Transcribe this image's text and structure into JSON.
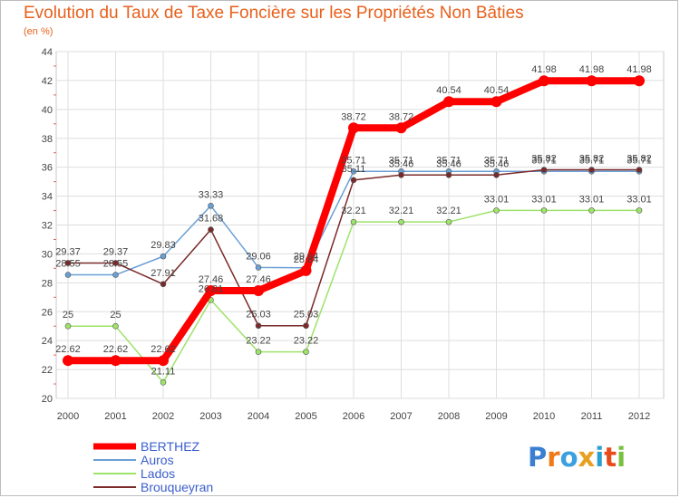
{
  "chart_data": {
    "type": "line",
    "title": "Evolution du Taux de Taxe Foncière sur les Propriétés Non Bâties",
    "ylabel": "(en %)",
    "xlabel": "",
    "ylim": [
      20,
      44
    ],
    "yticks": [
      "20",
      "22",
      "24",
      "26",
      "28",
      "30",
      "32",
      "34",
      "36",
      "38",
      "40",
      "42",
      "44"
    ],
    "categories": [
      "2000",
      "2001",
      "2002",
      "2003",
      "2004",
      "2005",
      "2006",
      "2007",
      "2008",
      "2009",
      "2010",
      "2011",
      "2012"
    ],
    "series": [
      {
        "name": "Auros",
        "color": "#6b9fd4",
        "values": [
          28.55,
          28.55,
          29.83,
          33.33,
          29.06,
          29.04,
          35.71,
          35.71,
          35.71,
          35.71,
          35.71,
          35.71,
          35.71
        ],
        "labels": [
          "28.55",
          "28.55",
          "29.83",
          "33.33",
          "29.06",
          "29.04",
          "35.71",
          "35.71",
          "35.71",
          "35.71",
          "35.71",
          "35.71",
          "35.71"
        ]
      },
      {
        "name": "Lados",
        "color": "#9ee36a",
        "values": [
          25,
          25,
          21.11,
          26.81,
          23.22,
          23.22,
          32.21,
          32.21,
          32.21,
          33.01,
          33.01,
          33.01,
          33.01
        ],
        "labels": [
          "25",
          "25",
          "21.11",
          "26.81",
          "23.22",
          "23.22",
          "32.21",
          "32.21",
          "32.21",
          "33.01",
          "33.01",
          "33.01",
          "33.01"
        ]
      },
      {
        "name": "Brouqueyran",
        "color": "#7a2a2a",
        "values": [
          29.37,
          29.37,
          27.91,
          31.68,
          25.03,
          25.03,
          35.11,
          35.46,
          35.46,
          35.46,
          35.82,
          35.82,
          35.82
        ],
        "labels": [
          "29.37",
          "29.37",
          "27.91",
          "31.68",
          "25.03",
          "25.03",
          "35.11",
          "35.46",
          "35.46",
          "35.46",
          "35.82",
          "35.82",
          "35.82"
        ]
      },
      {
        "name": "BERTHEZ",
        "color": "#ff0000",
        "values": [
          22.62,
          22.62,
          22.62,
          27.46,
          27.46,
          28.84,
          38.72,
          38.72,
          40.54,
          40.54,
          41.98,
          41.98,
          41.98
        ],
        "labels": [
          "22.62",
          "22.62",
          "22.62",
          "27.46",
          "27.46",
          "28.84",
          "38.72",
          "38.72",
          "40.54",
          "40.54",
          "41.98",
          "41.98",
          "41.98"
        ]
      }
    ],
    "legend": [
      {
        "name": "BERTHEZ",
        "color": "#ff0000"
      },
      {
        "name": "Auros",
        "color": "#6b9fd4"
      },
      {
        "name": "Lados",
        "color": "#9ee36a"
      },
      {
        "name": "Brouqueyran",
        "color": "#7a2a2a"
      }
    ],
    "legend_position": "bottom-left"
  },
  "logo": {
    "letters": [
      "P",
      "r",
      "o",
      "x",
      "i",
      "t",
      "i"
    ],
    "colors": [
      "#3a7fd0",
      "#f07a1a",
      "#3aa0e0",
      "#e8a020",
      "#2aa0d0",
      "#e84a1a",
      "#7ac040"
    ]
  }
}
